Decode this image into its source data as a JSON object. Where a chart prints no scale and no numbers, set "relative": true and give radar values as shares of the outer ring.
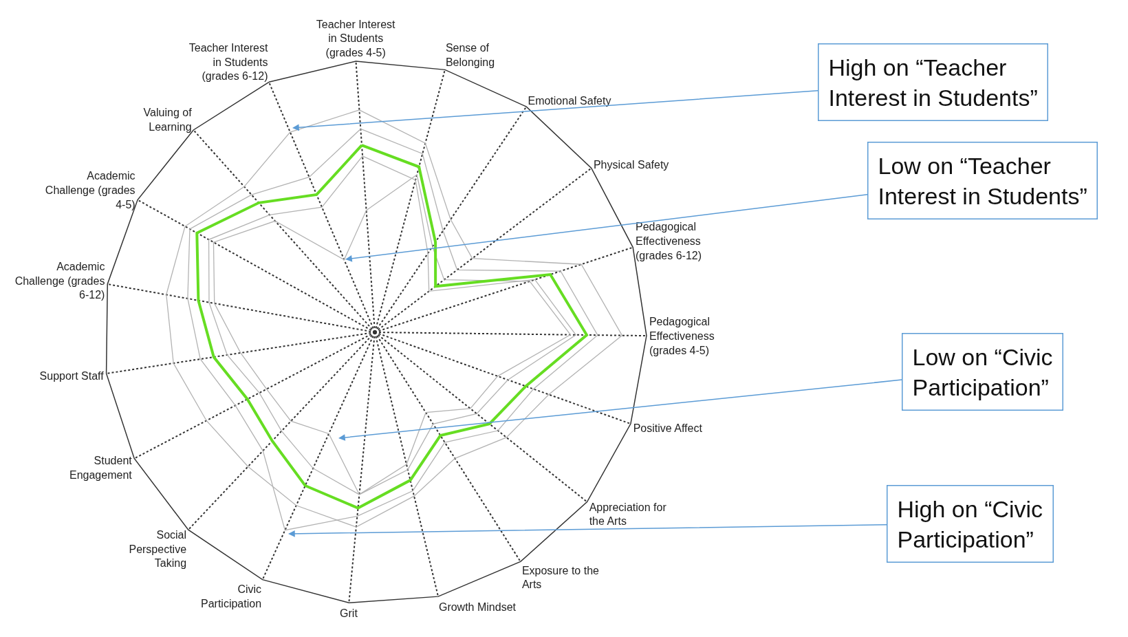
{
  "chart_data": {
    "type": "radar",
    "relative": true,
    "grid": true,
    "categories": [
      "Teacher Interest in Students (grades 4-5)",
      "Sense of Belonging",
      "Emotional Safety",
      "Physical Safety",
      "Pedagogical Effectiveness (grades 6-12)",
      "Pedagogical Effectiveness (grades 4-5)",
      "Positive Affect",
      "Appreciation for the Arts",
      "Exposure to the Arts",
      "Growth Mindset",
      "Grit",
      "Civic Participation",
      "Social Perspective Taking",
      "Student Engagement",
      "Support Staff",
      "Academic Challenge (grades 6-12)",
      "Academic Challenge (grades 4-5)",
      "Valuing of Learning",
      "Teacher Interest in Students (grades 6-12)"
    ],
    "series": [
      {
        "color": "#b3b3b3",
        "values": [
          0.82,
          0.72,
          0.5,
          0.45,
          0.8,
          0.91,
          0.68,
          0.62,
          0.55,
          0.62,
          0.72,
          0.7,
          0.68,
          0.7,
          0.75,
          0.78,
          0.8,
          0.72,
          0.8
        ]
      },
      {
        "color": "#b3b3b3",
        "values": [
          0.45,
          0.6,
          0.38,
          0.32,
          0.6,
          0.72,
          0.48,
          0.45,
          0.35,
          0.5,
          0.6,
          0.41,
          0.45,
          0.45,
          0.5,
          0.6,
          0.68,
          0.55,
          0.29
        ]
      },
      {
        "color": "#b3b3b3",
        "values": [
          0.75,
          0.68,
          0.45,
          0.38,
          0.72,
          0.82,
          0.62,
          0.58,
          0.48,
          0.6,
          0.68,
          0.8,
          0.6,
          0.58,
          0.65,
          0.7,
          0.78,
          0.68,
          0.62
        ]
      },
      {
        "color": "#b3b3b3",
        "values": [
          0.65,
          0.58,
          0.35,
          0.25,
          0.62,
          0.74,
          0.52,
          0.48,
          0.4,
          0.52,
          0.6,
          0.55,
          0.5,
          0.48,
          0.55,
          0.62,
          0.7,
          0.58,
          0.5
        ]
      },
      {
        "color": "#66dd22",
        "values": [
          0.69,
          0.63,
          0.4,
          0.28,
          0.68,
          0.78,
          0.59,
          0.54,
          0.45,
          0.56,
          0.65,
          0.62,
          0.55,
          0.53,
          0.6,
          0.66,
          0.75,
          0.64,
          0.55
        ]
      }
    ],
    "annotations": [
      "High on “Teacher\nInterest in Students”",
      "Low on “Teacher\nInterest in Students”",
      "Low on “Civic\nParticipation”",
      "High on “Civic\nParticipation”"
    ]
  }
}
